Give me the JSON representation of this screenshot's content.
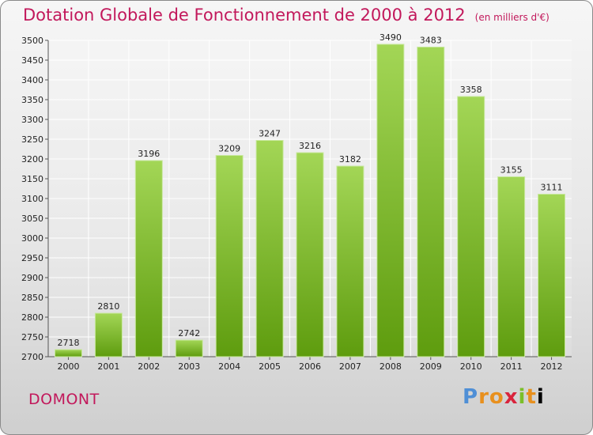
{
  "header": {
    "title": "Dotation Globale de Fonctionnement de 2000 à 2012",
    "subtitle": "(en milliers d'€)"
  },
  "commune": "DOMONT",
  "logo": {
    "text": "Proxiti"
  },
  "colors": {
    "title": "#c2185b",
    "bar_light": "#9fd34f",
    "bar_dark": "#62a010",
    "grid": "#ffffff"
  },
  "chart_data": {
    "type": "bar",
    "title": "Dotation Globale de Fonctionnement de 2000 à 2012",
    "subtitle": "(en milliers d'€)",
    "xlabel": "",
    "ylabel": "",
    "categories": [
      "2000",
      "2001",
      "2002",
      "2003",
      "2004",
      "2005",
      "2006",
      "2007",
      "2008",
      "2009",
      "2010",
      "2011",
      "2012"
    ],
    "values": [
      2718,
      2810,
      3196,
      2742,
      3209,
      3247,
      3216,
      3182,
      3490,
      3483,
      3358,
      3155,
      3111
    ],
    "ylim": [
      2700,
      3500
    ],
    "yticks": [
      2700,
      2750,
      2800,
      2850,
      2900,
      2950,
      3000,
      3050,
      3100,
      3150,
      3200,
      3250,
      3300,
      3350,
      3400,
      3450,
      3500
    ],
    "grid": true,
    "legend": "none"
  }
}
